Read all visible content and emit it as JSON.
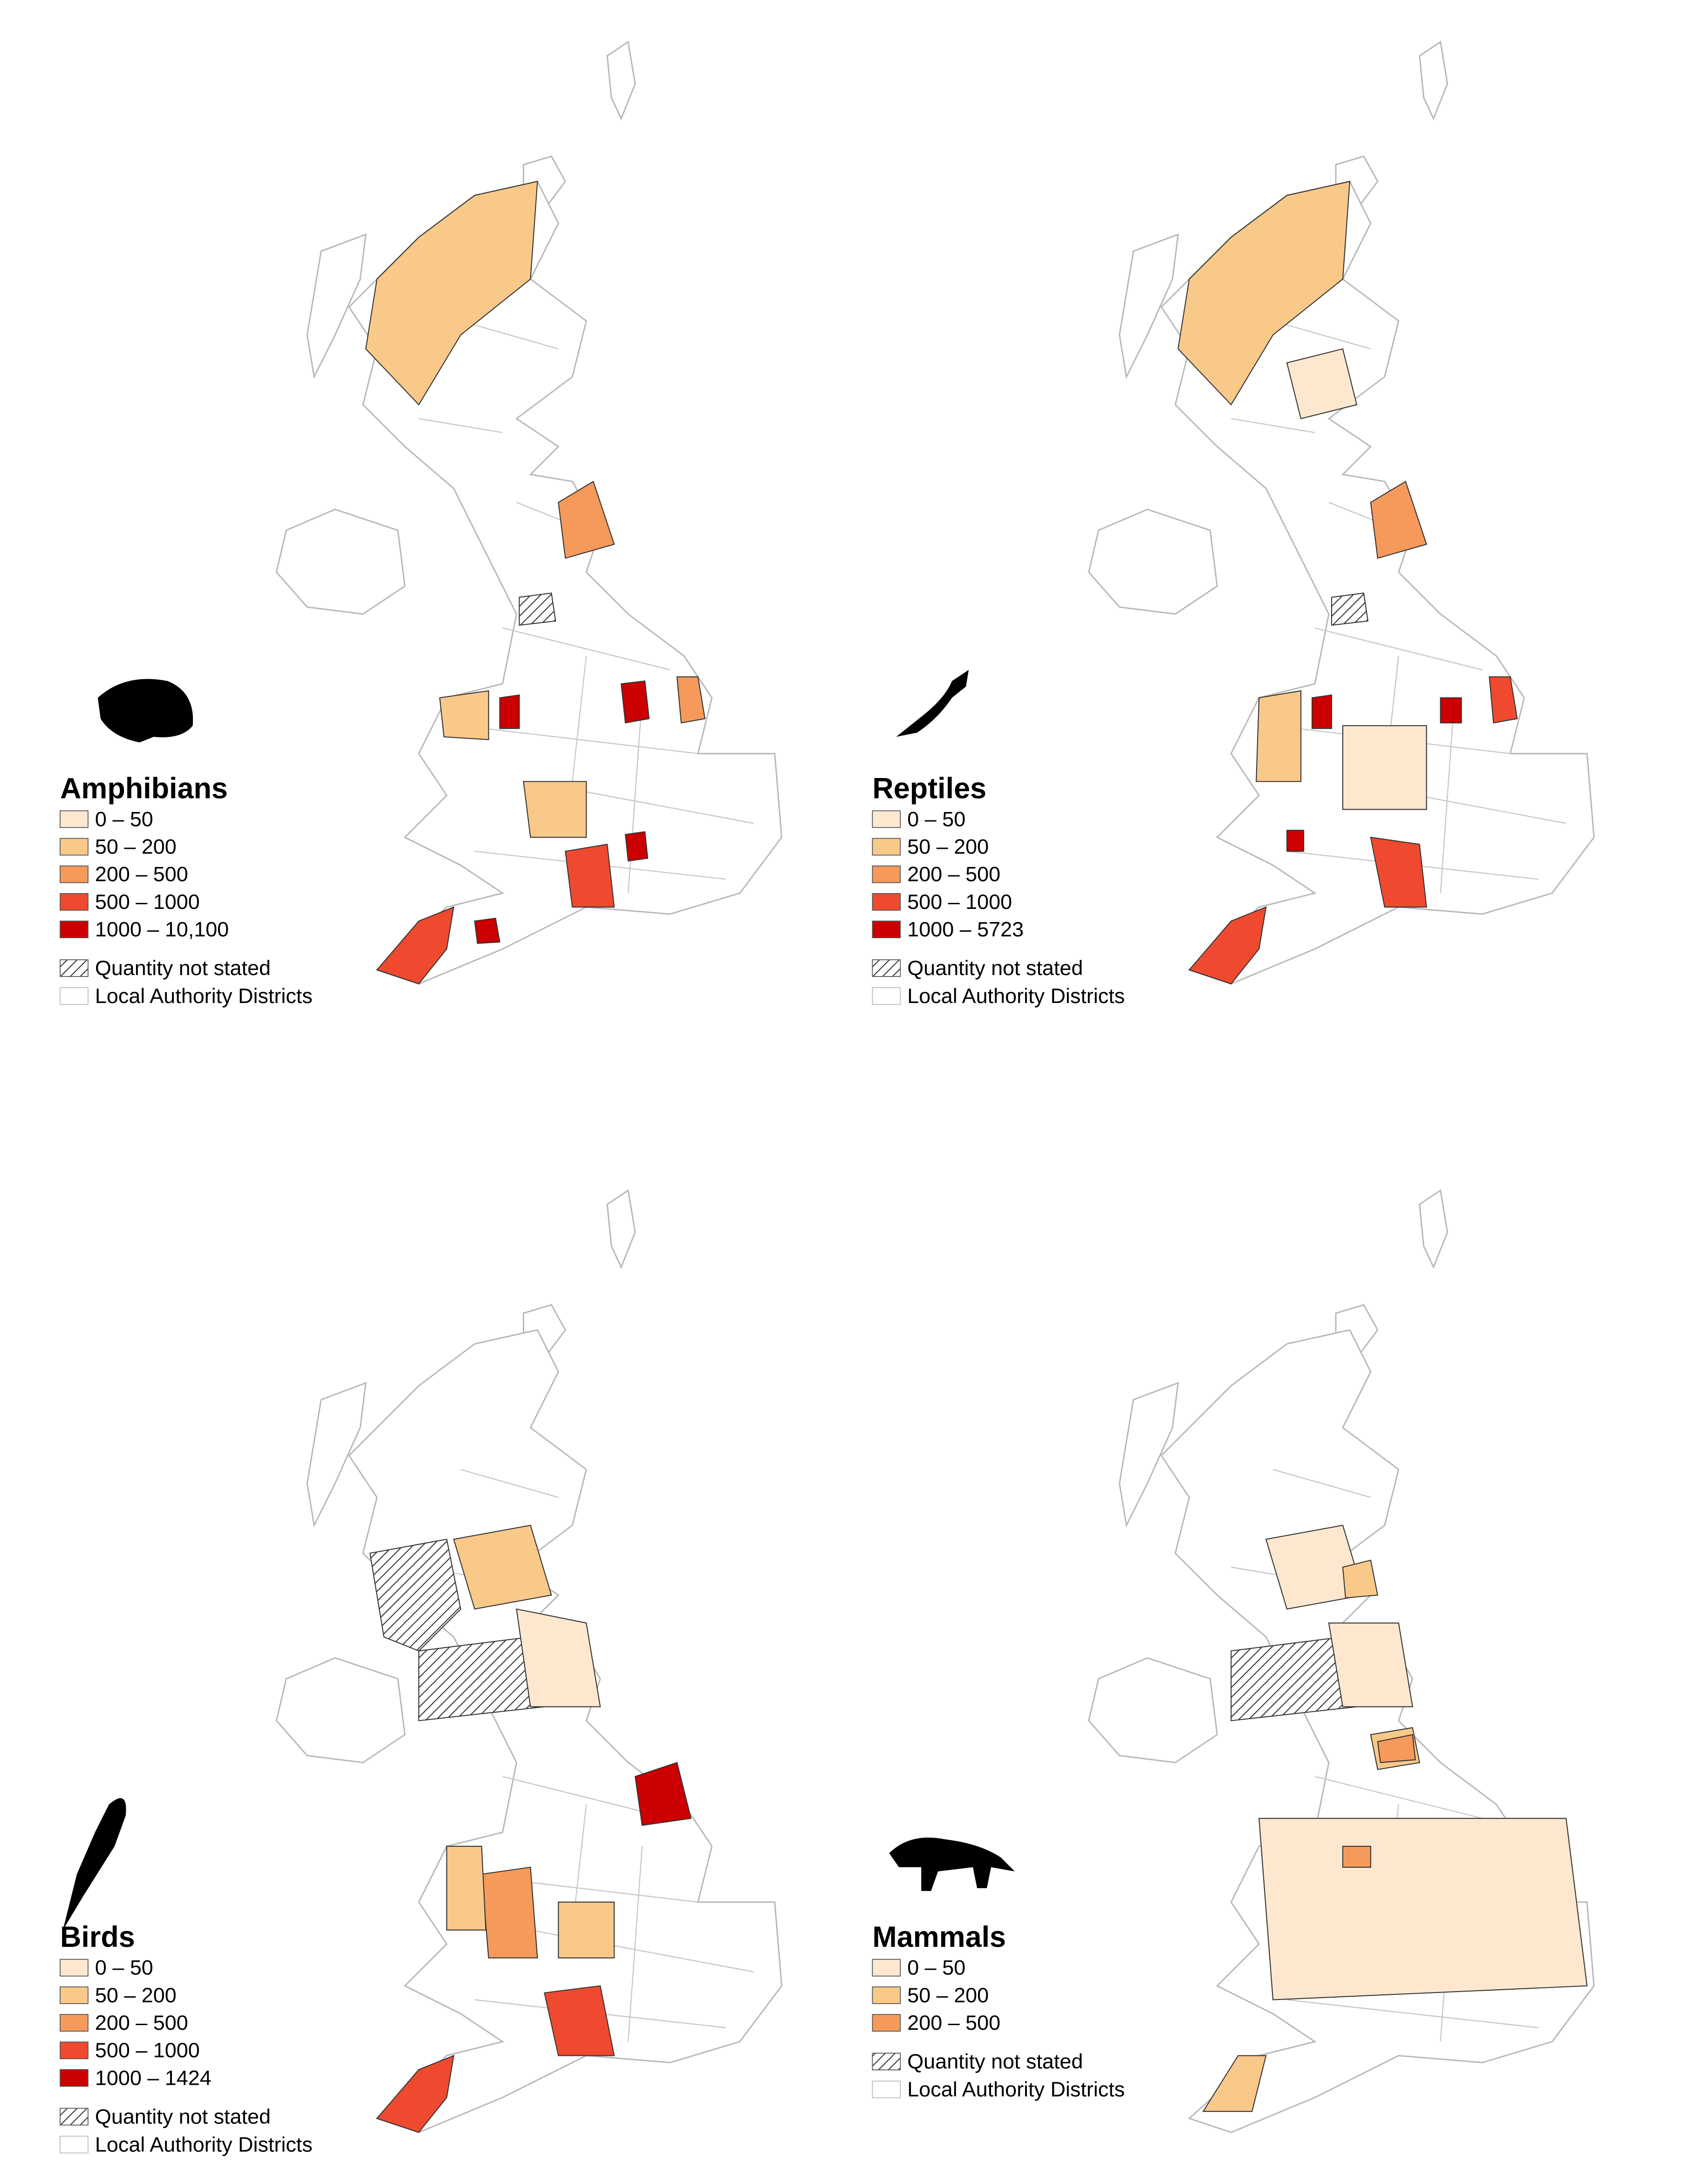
{
  "panels": [
    {
      "title": "Amphibians",
      "legend": [
        {
          "label": "0 – 50",
          "color": "#fde8cf"
        },
        {
          "label": "50 – 200",
          "color": "#f9c98a"
        },
        {
          "label": "200 – 500",
          "color": "#f59a5a"
        },
        {
          "label": "500 – 1000",
          "color": "#ef4a2f"
        },
        {
          "label": "1000 – 10,100",
          "color": "#cc0000"
        }
      ],
      "not_stated": "Quantity not stated",
      "districts": "Local Authority Districts"
    },
    {
      "title": "Reptiles",
      "legend": [
        {
          "label": "0 – 50",
          "color": "#fde8cf"
        },
        {
          "label": "50 – 200",
          "color": "#f9c98a"
        },
        {
          "label": "200 – 500",
          "color": "#f59a5a"
        },
        {
          "label": "500 – 1000",
          "color": "#ef4a2f"
        },
        {
          "label": "1000 – 5723",
          "color": "#cc0000"
        }
      ],
      "not_stated": "Quantity not stated",
      "districts": "Local Authority Districts"
    },
    {
      "title": "Birds",
      "legend": [
        {
          "label": "0 – 50",
          "color": "#fde8cf"
        },
        {
          "label": "50 – 200",
          "color": "#f9c98a"
        },
        {
          "label": "200 – 500",
          "color": "#f59a5a"
        },
        {
          "label": "500 – 1000",
          "color": "#ef4a2f"
        },
        {
          "label": "1000 – 1424",
          "color": "#cc0000"
        }
      ],
      "not_stated": "Quantity not stated",
      "districts": "Local Authority Districts"
    },
    {
      "title": "Mammals",
      "legend": [
        {
          "label": "0 – 50",
          "color": "#fde8cf"
        },
        {
          "label": "50 – 200",
          "color": "#f9c98a"
        },
        {
          "label": "200 – 500",
          "color": "#f59a5a"
        }
      ],
      "not_stated": "Quantity not stated",
      "districts": "Local Authority Districts"
    }
  ]
}
